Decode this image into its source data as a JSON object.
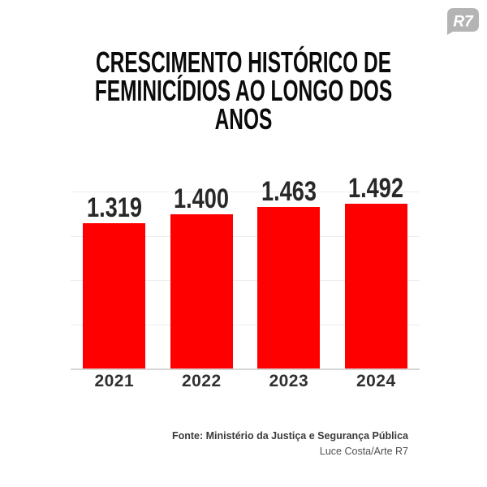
{
  "page": {
    "background": "#ffffff"
  },
  "logo": {
    "text": "R7",
    "bubble_color": "#b4b4b4",
    "text_color": "#ffffff"
  },
  "title": {
    "line1": "CRESCIMENTO HISTÓRICO DE",
    "line2": "FEMINICÍDIOS AO LONGO DOS ANOS",
    "color": "#0b0b0b"
  },
  "chart_data": {
    "type": "bar",
    "title": "Crescimento histórico de feminicídios ao longo dos anos",
    "categories": [
      "2021",
      "2022",
      "2023",
      "2024"
    ],
    "values": [
      1319,
      1400,
      1463,
      1492
    ],
    "value_labels": [
      "1.319",
      "1.400",
      "1.463",
      "1.492"
    ],
    "xlabel": "",
    "ylabel": "",
    "ylim": [
      0,
      1600
    ],
    "gridline_values": [
      400,
      800,
      1200,
      1600
    ],
    "grid": "horizontal, no tick labels",
    "legend": "none",
    "bar_color": "#fe0000",
    "gridline_color": "#ededed",
    "axis_color": "#d6d6d6",
    "value_label_color": "#282828",
    "category_label_color": "#303030"
  },
  "footer": {
    "source": "Fonte: Ministério da Justiça e Segurança Pública",
    "credit": "Luce Costa/Arte R7",
    "source_color": "#3a3a3a",
    "credit_color": "#4f4f4f"
  }
}
